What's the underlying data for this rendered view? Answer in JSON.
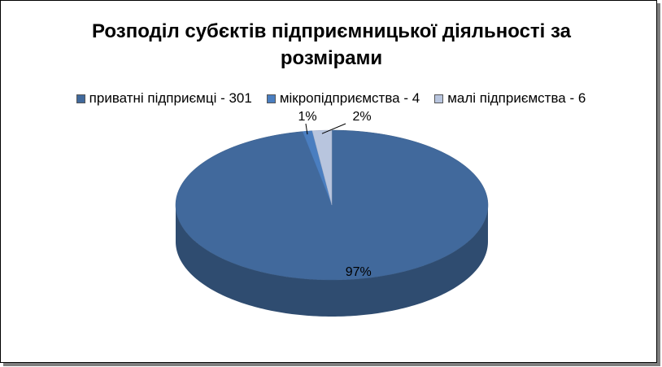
{
  "chart_data": {
    "type": "pie",
    "title": "Розподіл субєктів підприємницької діяльності за розмірами",
    "categories": [
      "приватні підприємці - 301",
      "мікропідприємства - 4",
      "малі підприємства - 6"
    ],
    "values": [
      97,
      1,
      2
    ],
    "value_labels": [
      "97%",
      "1%",
      "2%"
    ],
    "colors": [
      "#41699c",
      "#4a7ec0",
      "#b8c5de"
    ],
    "legend": "top"
  }
}
